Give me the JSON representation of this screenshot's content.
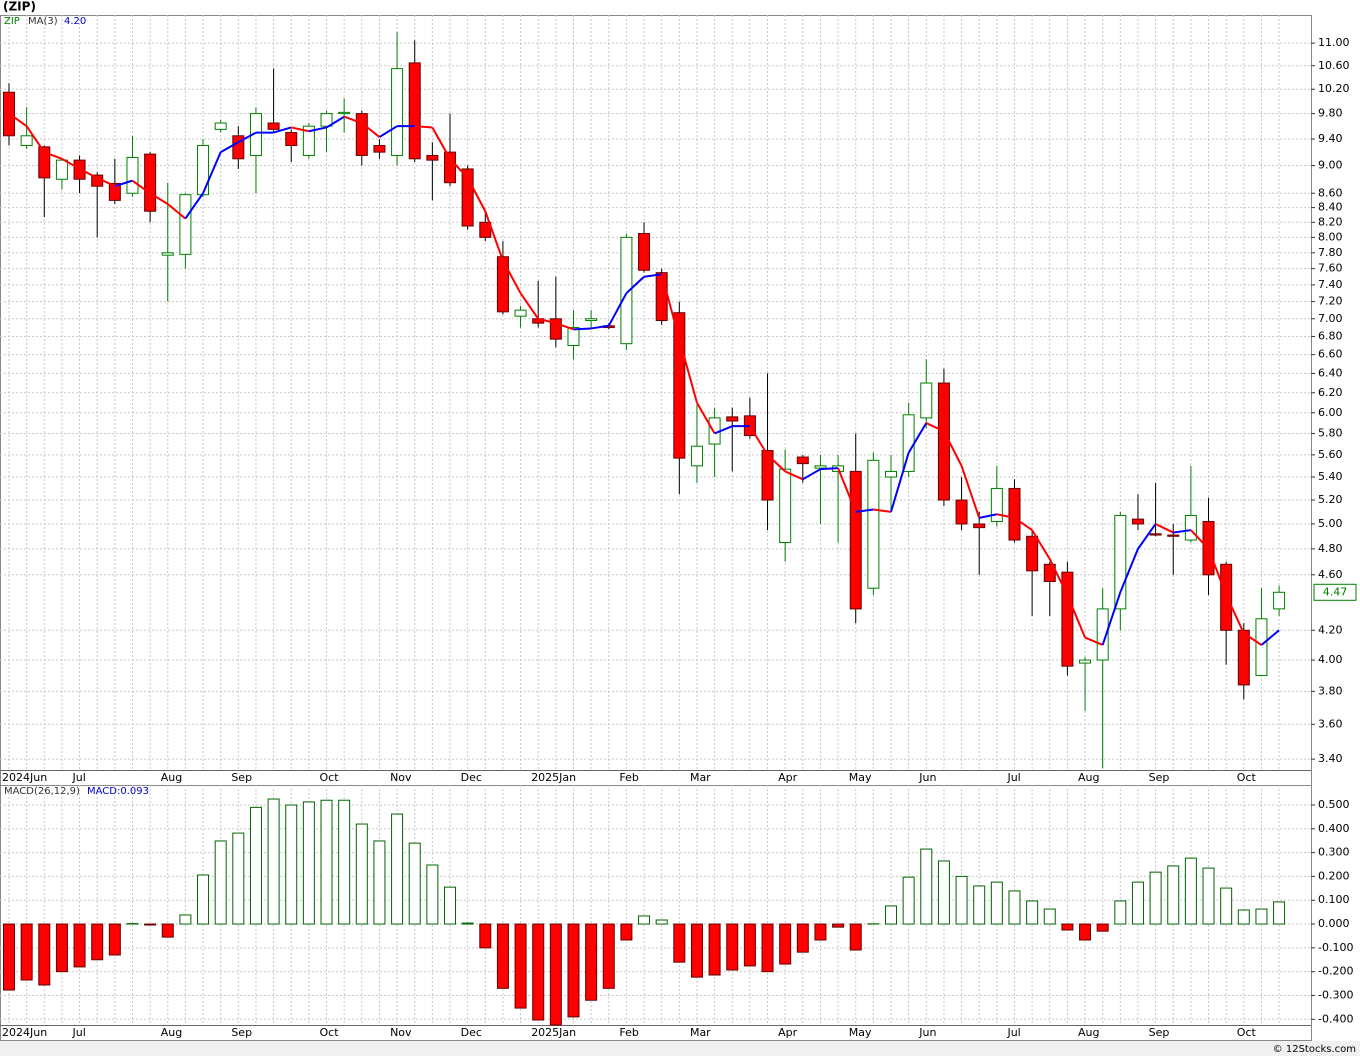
{
  "chart_data": [
    {
      "type": "candlestick",
      "title": "(ZIP)",
      "symbol": "ZIP",
      "log_scale": true,
      "grid": true,
      "up_color": "#008000",
      "down_color": "#ff0000",
      "categories": [
        "2024Jun",
        null,
        null,
        null,
        "Jul",
        null,
        null,
        null,
        null,
        "Aug",
        null,
        null,
        null,
        "Sep",
        null,
        null,
        null,
        null,
        "Oct",
        null,
        null,
        null,
        "Nov",
        null,
        null,
        null,
        "Dec",
        null,
        null,
        null,
        "2025Jan",
        null,
        null,
        null,
        null,
        "Feb",
        null,
        null,
        null,
        "Mar",
        null,
        null,
        null,
        null,
        "Apr",
        null,
        null,
        null,
        "May",
        null,
        null,
        null,
        "Jun",
        null,
        null,
        null,
        null,
        "Jul",
        null,
        null,
        null,
        "Aug",
        null,
        null,
        null,
        "Sep",
        null,
        null,
        null,
        null,
        "Oct",
        null,
        null
      ],
      "open": [
        10.15,
        9.3,
        9.28,
        8.8,
        9.08,
        8.86,
        8.74,
        8.6,
        9.17,
        7.77,
        7.78,
        8.58,
        9.55,
        9.45,
        9.15,
        9.65,
        9.5,
        9.15,
        9.6,
        9.8,
        9.8,
        9.3,
        9.15,
        10.65,
        9.15,
        9.2,
        8.95,
        8.2,
        7.75,
        7.03,
        7.0,
        7.0,
        6.7,
        6.98,
        6.92,
        6.72,
        8.05,
        7.55,
        7.07,
        5.5,
        5.7,
        5.96,
        5.97,
        5.64,
        4.85,
        5.58,
        5.48,
        5.45,
        5.45,
        4.5,
        5.4,
        5.45,
        5.95,
        6.3,
        5.2,
        5.0,
        5.02,
        5.3,
        4.9,
        4.68,
        4.62,
        3.98,
        4.0,
        4.35,
        5.04,
        4.92,
        4.91,
        4.87,
        5.02,
        4.68,
        4.2,
        3.9,
        4.35
      ],
      "high": [
        10.3,
        9.9,
        9.3,
        9.1,
        9.15,
        8.9,
        9.1,
        9.45,
        9.2,
        8.75,
        8.6,
        9.4,
        9.7,
        9.6,
        9.9,
        10.55,
        9.55,
        9.65,
        9.85,
        10.05,
        9.85,
        9.4,
        11.2,
        11.05,
        9.35,
        9.8,
        9.0,
        8.35,
        7.95,
        7.15,
        7.45,
        7.5,
        7.1,
        7.1,
        6.95,
        8.05,
        8.2,
        7.6,
        7.2,
        6.08,
        6.05,
        6.05,
        6.15,
        6.4,
        5.65,
        5.6,
        5.6,
        5.6,
        5.8,
        5.62,
        5.6,
        6.1,
        6.55,
        6.45,
        5.4,
        5.1,
        5.5,
        5.38,
        4.95,
        4.7,
        4.7,
        4.02,
        4.5,
        5.1,
        5.25,
        5.35,
        5.0,
        5.5,
        5.22,
        4.7,
        4.25,
        4.5,
        4.52
      ],
      "low": [
        9.3,
        9.25,
        8.27,
        8.65,
        8.6,
        8.0,
        8.45,
        8.55,
        8.2,
        7.2,
        7.6,
        8.55,
        9.5,
        8.95,
        8.6,
        9.5,
        9.05,
        9.1,
        9.2,
        9.5,
        9.0,
        9.1,
        9.0,
        9.05,
        8.5,
        8.7,
        8.1,
        7.95,
        7.05,
        6.9,
        6.9,
        6.68,
        6.55,
        6.9,
        6.88,
        6.65,
        7.55,
        6.93,
        5.25,
        5.35,
        5.4,
        5.45,
        5.75,
        4.95,
        4.7,
        5.35,
        5.0,
        4.85,
        4.25,
        4.45,
        5.1,
        5.4,
        5.85,
        5.15,
        4.95,
        4.6,
        4.98,
        4.85,
        4.3,
        4.3,
        3.9,
        3.68,
        3.35,
        4.2,
        4.95,
        4.9,
        4.6,
        4.85,
        4.45,
        3.97,
        3.75,
        3.9,
        4.3
      ],
      "close": [
        9.45,
        9.45,
        8.82,
        9.08,
        8.8,
        8.7,
        8.5,
        9.12,
        8.35,
        7.8,
        8.58,
        9.3,
        9.65,
        9.1,
        9.8,
        9.55,
        9.3,
        9.6,
        9.8,
        9.82,
        9.15,
        9.2,
        10.55,
        9.1,
        9.08,
        8.75,
        8.15,
        8.0,
        7.08,
        7.1,
        6.95,
        6.77,
        6.9,
        7.0,
        6.9,
        8.0,
        7.58,
        6.98,
        5.57,
        5.68,
        5.95,
        5.92,
        5.78,
        5.2,
        5.47,
        5.52,
        5.5,
        5.5,
        4.35,
        5.55,
        5.45,
        5.98,
        6.3,
        5.2,
        5.0,
        4.97,
        5.3,
        4.87,
        4.63,
        4.55,
        3.96,
        4.0,
        4.35,
        5.07,
        5.0,
        4.91,
        4.9,
        5.07,
        4.6,
        4.2,
        3.84,
        4.28,
        4.47
      ],
      "last_price_label": "4.47",
      "ma": {
        "name": "MA(3)",
        "legend_value": "4.20",
        "up_color": "#0000ff",
        "down_color": "#ff0000",
        "values": [
          9.8,
          9.6,
          9.2,
          9.1,
          8.95,
          8.82,
          8.7,
          8.78,
          8.6,
          8.45,
          8.25,
          8.6,
          9.2,
          9.35,
          9.5,
          9.5,
          9.58,
          9.52,
          9.58,
          9.75,
          9.65,
          9.43,
          9.6,
          9.6,
          9.58,
          9.1,
          8.82,
          8.35,
          7.7,
          7.3,
          7.0,
          6.95,
          6.88,
          6.89,
          6.92,
          7.3,
          7.5,
          7.53,
          6.77,
          6.1,
          5.8,
          5.87,
          5.87,
          5.6,
          5.45,
          5.38,
          5.47,
          5.48,
          5.1,
          5.12,
          5.1,
          5.62,
          5.9,
          5.82,
          5.5,
          5.05,
          5.08,
          5.05,
          4.95,
          4.72,
          4.45,
          4.15,
          4.1,
          4.47,
          4.8,
          5.0,
          4.93,
          4.95,
          4.8,
          4.45,
          4.18,
          4.1,
          4.2
        ]
      },
      "ylim": [
        3.34,
        11.52
      ],
      "yticks": [
        {
          "value": 11,
          "label": "11.00"
        },
        {
          "value": 10.6,
          "label": "10.60"
        },
        {
          "value": 10.2,
          "label": "10.20"
        },
        {
          "value": 9.8,
          "label": "9.80"
        },
        {
          "value": 9.4,
          "label": "9.40"
        },
        {
          "value": 9,
          "label": "9.00"
        },
        {
          "value": 8.6,
          "label": "8.60"
        },
        {
          "value": 8.4,
          "label": "8.40"
        },
        {
          "value": 8.2,
          "label": "8.20"
        },
        {
          "value": 8,
          "label": "8.00"
        },
        {
          "value": 7.8,
          "label": "7.80"
        },
        {
          "value": 7.6,
          "label": "7.60"
        },
        {
          "value": 7.4,
          "label": "7.40"
        },
        {
          "value": 7.2,
          "label": "7.20"
        },
        {
          "value": 7,
          "label": "7.00"
        },
        {
          "value": 6.8,
          "label": "6.80"
        },
        {
          "value": 6.6,
          "label": "6.60"
        },
        {
          "value": 6.4,
          "label": "6.40"
        },
        {
          "value": 6.2,
          "label": "6.20"
        },
        {
          "value": 6,
          "label": "6.00"
        },
        {
          "value": 5.8,
          "label": "5.80"
        },
        {
          "value": 5.6,
          "label": "5.60"
        },
        {
          "value": 5.4,
          "label": "5.40"
        },
        {
          "value": 5.2,
          "label": "5.20"
        },
        {
          "value": 5,
          "label": "5.00"
        },
        {
          "value": 4.8,
          "label": "4.80"
        },
        {
          "value": 4.6,
          "label": "4.60"
        },
        {
          "value": 4.2,
          "label": "4.20"
        },
        {
          "value": 4,
          "label": "4.00"
        },
        {
          "value": 3.8,
          "label": "3.80"
        },
        {
          "value": 3.6,
          "label": "3.60"
        },
        {
          "value": 3.4,
          "label": "3.40"
        }
      ]
    },
    {
      "type": "bar",
      "name": "MACD(26,12,9)",
      "legend_value": "MACD:0.093",
      "grid": true,
      "up_color": "#006400",
      "down_color": "#ff0000",
      "categories": [
        "2024Jun",
        null,
        null,
        null,
        "Jul",
        null,
        null,
        null,
        null,
        "Aug",
        null,
        null,
        null,
        "Sep",
        null,
        null,
        null,
        null,
        "Oct",
        null,
        null,
        null,
        "Nov",
        null,
        null,
        null,
        "Dec",
        null,
        null,
        null,
        "2025Jan",
        null,
        null,
        null,
        null,
        "Feb",
        null,
        null,
        null,
        "Mar",
        null,
        null,
        null,
        null,
        "Apr",
        null,
        null,
        null,
        "May",
        null,
        null,
        null,
        "Jun",
        null,
        null,
        null,
        null,
        "Jul",
        null,
        null,
        null,
        "Aug",
        null,
        null,
        null,
        "Sep",
        null,
        null,
        null,
        null,
        "Oct",
        null,
        null
      ],
      "values": [
        -0.277,
        -0.235,
        -0.256,
        -0.2,
        -0.18,
        -0.15,
        -0.13,
        0.002,
        -0.004,
        -0.055,
        0.038,
        0.206,
        0.349,
        0.382,
        0.49,
        0.525,
        0.5,
        0.513,
        0.52,
        0.52,
        0.42,
        0.349,
        0.462,
        0.34,
        0.248,
        0.155,
        0.004,
        -0.1,
        -0.27,
        -0.353,
        -0.403,
        -0.424,
        -0.39,
        -0.32,
        -0.27,
        -0.067,
        0.034,
        0.017,
        -0.16,
        -0.223,
        -0.214,
        -0.193,
        -0.176,
        -0.2,
        -0.168,
        -0.118,
        -0.067,
        -0.013,
        -0.109,
        0.001,
        0.076,
        0.197,
        0.315,
        0.265,
        0.2,
        0.16,
        0.176,
        0.139,
        0.097,
        0.063,
        -0.025,
        -0.067,
        -0.03,
        0.097,
        0.176,
        0.218,
        0.244,
        0.277,
        0.235,
        0.151,
        0.059,
        0.063,
        0.093
      ],
      "ylim": [
        -0.424,
        0.584
      ],
      "yticks": [
        {
          "value": 0.5,
          "label": "0.500"
        },
        {
          "value": 0.4,
          "label": "0.400"
        },
        {
          "value": 0.3,
          "label": "0.300"
        },
        {
          "value": 0.2,
          "label": "0.200"
        },
        {
          "value": 0.1,
          "label": "0.100"
        },
        {
          "value": 0,
          "label": "0.000"
        },
        {
          "value": -0.1,
          "label": "-0.100"
        },
        {
          "value": -0.2,
          "label": "-0.200"
        },
        {
          "value": -0.3,
          "label": "-0.300"
        },
        {
          "value": -0.4,
          "label": "-0.400"
        }
      ]
    }
  ],
  "footer": "© 12Stocks.com"
}
